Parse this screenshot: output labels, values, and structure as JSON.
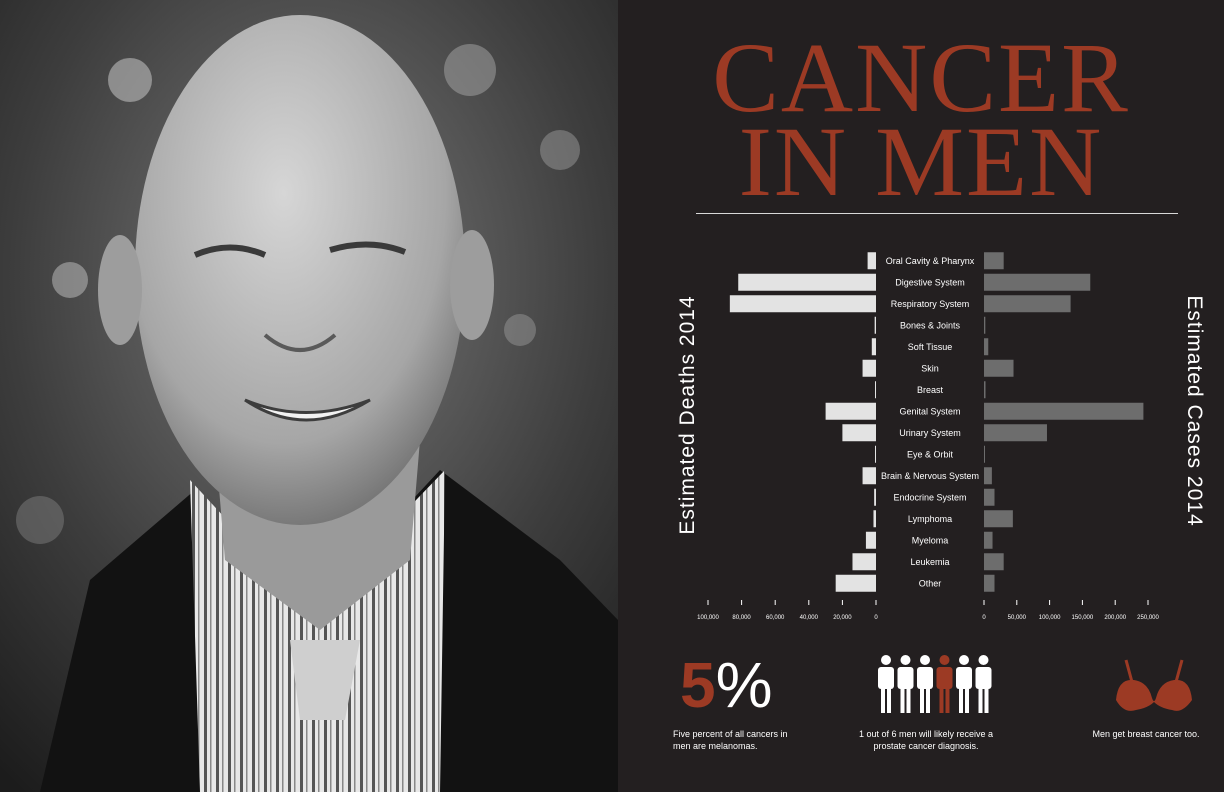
{
  "title": {
    "line1": "CANCER",
    "line2": "IN MEN"
  },
  "left_axis_label": "Estimated  Deaths  2014",
  "right_axis_label": "Estimated  Cases  2014",
  "chart_data": {
    "type": "bar",
    "orientation": "horizontal-butterfly",
    "categories": [
      "Oral Cavity & Pharynx",
      "Digestive System",
      "Respiratory System",
      "Bones & Joints",
      "Soft Tissue",
      "Skin",
      "Breast",
      "Genital System",
      "Urinary System",
      "Eye & Orbit",
      "Brain & Nervous System",
      "Endocrine System",
      "Lymphoma",
      "Myeloma",
      "Leukemia",
      "Other"
    ],
    "series": [
      {
        "side": "left",
        "color": "#e3e3e3",
        "values": [
          5000,
          82000,
          87000,
          800,
          2500,
          8000,
          500,
          30000,
          20000,
          200,
          8000,
          1100,
          1500,
          6000,
          14000,
          24000
        ]
      },
      {
        "side": "right",
        "color": "#6d6d6d",
        "values": [
          30000,
          162000,
          132000,
          2000,
          6500,
          45000,
          2300,
          243000,
          96000,
          1500,
          12000,
          16000,
          44000,
          13000,
          30000,
          16000
        ]
      }
    ],
    "left_axis": {
      "ticks": [
        "100,000",
        "80,000",
        "60,000",
        "40,000",
        "20,000",
        "0"
      ],
      "values": [
        100000,
        80000,
        60000,
        40000,
        20000,
        0
      ]
    },
    "right_axis": {
      "ticks": [
        "0",
        "50,000",
        "100,000",
        "150,000",
        "200,000",
        "250,000"
      ],
      "values": [
        0,
        50000,
        100000,
        150000,
        200000,
        250000
      ]
    }
  },
  "stats": {
    "melanoma": {
      "number": "5",
      "unit": "%",
      "caption": "Five percent of all cancers in men are melanomas."
    },
    "prostate": {
      "caption": "1 out of 6 men will likely receive a prostate cancer diagnosis."
    },
    "breast": {
      "caption": "Men get breast cancer too."
    }
  },
  "colors": {
    "accent": "#9c3a24",
    "background": "#231f20",
    "deaths_bar": "#e3e3e3",
    "cases_bar": "#6d6d6d",
    "people": "#ffffff"
  },
  "icons": [
    "portrait-photo",
    "person-icon",
    "bra-icon"
  ]
}
